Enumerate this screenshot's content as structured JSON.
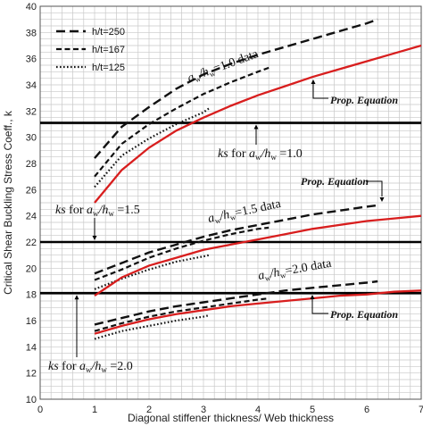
{
  "chart_data": {
    "type": "line",
    "xlabel": "Diagonal stiffener thickness/ Web thickness",
    "ylabel": "Critical Shear Buckling Stress Coeff., k",
    "xlim": [
      0,
      7
    ],
    "ylim": [
      10,
      40
    ],
    "x_ticks": [
      "0",
      "1",
      "2",
      "3",
      "4",
      "5",
      "6",
      "7"
    ],
    "y_ticks": [
      "10",
      "12",
      "14",
      "16",
      "18",
      "20",
      "22",
      "24",
      "26",
      "28",
      "30",
      "32",
      "34",
      "36",
      "38",
      "40"
    ],
    "grid": true,
    "legend_position": "top-left",
    "legend": [
      {
        "name": "h/t=250",
        "dash": "long-dash"
      },
      {
        "name": "h/t=167",
        "dash": "dash"
      },
      {
        "name": "h/t=125",
        "dash": "dot"
      }
    ],
    "horizontal_lines": [
      {
        "y": 31.1,
        "group": "a_w/h_w=1.0"
      },
      {
        "y": 22.0,
        "group": "a_w/h_w=1.5"
      },
      {
        "y": 18.1,
        "group": "a_w/h_w=2.0"
      }
    ],
    "series": [
      {
        "group": "1.0",
        "style": "long-dash",
        "legend_index": 0,
        "x": [
          1,
          1.5,
          2,
          2.5,
          3,
          3.5,
          4,
          4.5,
          5,
          5.5,
          6,
          6.2
        ],
        "y": [
          28.4,
          30.8,
          32.3,
          33.7,
          34.8,
          35.6,
          36.3,
          36.9,
          37.5,
          38.1,
          38.7,
          39.0
        ]
      },
      {
        "group": "1.0",
        "style": "dash",
        "legend_index": 1,
        "x": [
          1,
          1.5,
          2,
          2.5,
          3,
          3.5,
          4,
          4.2
        ],
        "y": [
          27.0,
          29.5,
          31.0,
          32.2,
          33.3,
          34.2,
          35.0,
          35.3
        ]
      },
      {
        "group": "1.0",
        "style": "dot",
        "legend_index": 2,
        "x": [
          1,
          1.5,
          2,
          2.5,
          3,
          3.1
        ],
        "y": [
          26.2,
          28.6,
          29.9,
          31.0,
          31.9,
          32.2
        ]
      },
      {
        "group": "1.0",
        "style": "red-solid",
        "x": [
          1,
          1.5,
          2,
          2.5,
          3,
          3.5,
          4,
          4.5,
          5,
          5.5,
          6,
          6.5,
          7
        ],
        "y": [
          25.0,
          27.5,
          29.2,
          30.5,
          31.5,
          32.4,
          33.2,
          33.9,
          34.6,
          35.2,
          35.8,
          36.4,
          37.0
        ]
      },
      {
        "group": "1.5",
        "style": "long-dash",
        "legend_index": 0,
        "x": [
          1,
          1.5,
          2,
          2.5,
          3,
          3.5,
          4,
          4.5,
          5,
          5.5,
          6,
          6.2
        ],
        "y": [
          19.6,
          20.4,
          21.2,
          21.8,
          22.4,
          22.9,
          23.3,
          23.7,
          24.1,
          24.4,
          24.7,
          24.8
        ]
      },
      {
        "group": "1.5",
        "style": "dash",
        "legend_index": 1,
        "x": [
          1,
          1.5,
          2,
          2.5,
          3,
          3.5,
          4,
          4.2
        ],
        "y": [
          19.1,
          19.9,
          20.8,
          21.5,
          22.1,
          22.6,
          23.0,
          23.1
        ]
      },
      {
        "group": "1.5",
        "style": "dot",
        "legend_index": 2,
        "x": [
          1,
          1.5,
          2,
          2.5,
          3,
          3.1
        ],
        "y": [
          18.4,
          19.2,
          19.9,
          20.5,
          20.9,
          21.0
        ]
      },
      {
        "group": "1.5",
        "style": "red-solid",
        "x": [
          1,
          1.5,
          2,
          2.5,
          3,
          3.5,
          4,
          4.5,
          5,
          5.5,
          6,
          6.5,
          7
        ],
        "y": [
          17.9,
          19.3,
          20.2,
          20.8,
          21.4,
          21.8,
          22.2,
          22.6,
          23.0,
          23.3,
          23.6,
          23.8,
          24.0
        ]
      },
      {
        "group": "2.0",
        "style": "long-dash",
        "legend_index": 0,
        "x": [
          1,
          1.5,
          2,
          2.5,
          3,
          3.5,
          4,
          4.5,
          5,
          5.5,
          6,
          6.2
        ],
        "y": [
          15.7,
          16.2,
          16.7,
          17.1,
          17.4,
          17.7,
          18.0,
          18.3,
          18.5,
          18.7,
          18.9,
          19.0
        ]
      },
      {
        "group": "2.0",
        "style": "dash",
        "legend_index": 1,
        "x": [
          1,
          1.5,
          2,
          2.5,
          3,
          3.5,
          4,
          4.2
        ],
        "y": [
          15.2,
          15.8,
          16.3,
          16.7,
          17.0,
          17.3,
          17.6,
          17.7
        ]
      },
      {
        "group": "2.0",
        "style": "dot",
        "legend_index": 2,
        "x": [
          1,
          1.5,
          2,
          2.5,
          3,
          3.1
        ],
        "y": [
          14.6,
          15.2,
          15.6,
          16.0,
          16.3,
          16.4
        ]
      },
      {
        "group": "2.0",
        "style": "red-solid",
        "x": [
          1,
          1.5,
          2,
          2.5,
          3,
          3.5,
          4,
          4.5,
          5,
          5.5,
          6,
          6.5,
          7
        ],
        "y": [
          15.0,
          15.6,
          16.1,
          16.5,
          16.8,
          17.1,
          17.3,
          17.5,
          17.7,
          17.9,
          18.0,
          18.2,
          18.3
        ]
      }
    ],
    "annotations": [
      {
        "italic_a": "a",
        "sub_a": "w",
        "italic_h": "/h",
        "sub_h": "w",
        "rest": "=1.0 data"
      },
      {
        "italic_a": "a",
        "sub_a": "w",
        "italic_h": "/h",
        "sub_h": "w",
        "rest": "=1.5 data"
      },
      {
        "italic_a": "a",
        "sub_a": "w",
        "italic_h": "/h",
        "sub_h": "w",
        "rest": "=2.0 data"
      },
      {
        "text": "Prop. Equation"
      },
      {
        "text": "Prop. Equation"
      },
      {
        "text": "Prop. Equation"
      },
      {
        "ks": "ks",
        "for": " for ",
        "a": "a",
        "sub_a": "w",
        "h": "/h",
        "sub_h": "w",
        "rest": " =1.0"
      },
      {
        "ks": "ks",
        "for": " for ",
        "a": "a",
        "sub_a": "w",
        "h": "/h",
        "sub_h": "w",
        "rest": " =1.5"
      },
      {
        "ks": "ks",
        "for": " for ",
        "a": "a",
        "sub_a": "w",
        "h": "/h",
        "sub_h": "w",
        "rest": " =2.0"
      }
    ],
    "colors": {
      "data_lines": "#111111",
      "prop_equation": "#d81e1e",
      "grid": "#c8c8c8",
      "frame": "#555555"
    }
  }
}
